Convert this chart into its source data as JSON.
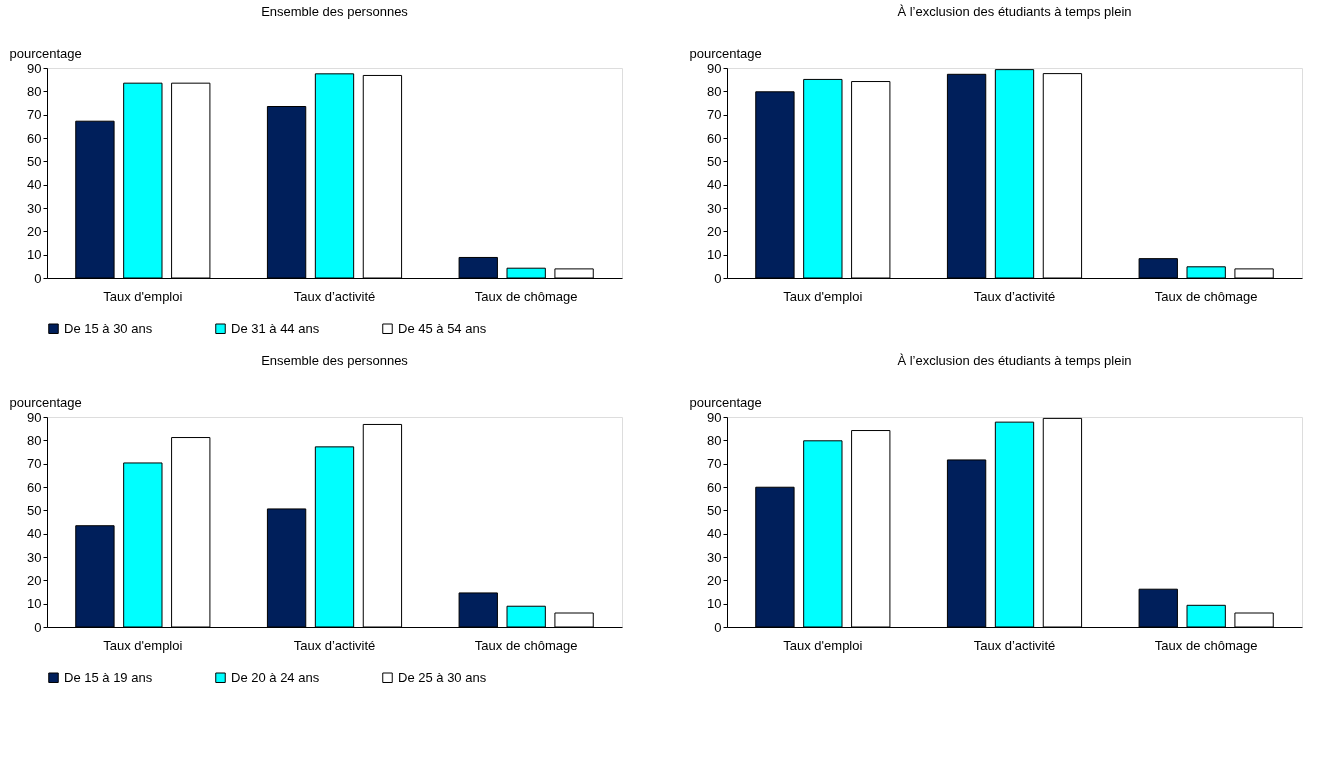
{
  "chart_data": [
    {
      "type": "bar",
      "title": "Ensemble des personnes",
      "ylabel": "pourcentage",
      "categories": [
        "Taux d'emploi",
        "Taux d’activité",
        "Taux de chômage"
      ],
      "ylim": [
        0,
        90
      ],
      "yticks": [
        0,
        10,
        20,
        30,
        40,
        50,
        60,
        70,
        80,
        90
      ],
      "legend": "bottom",
      "grid": false,
      "series": [
        {
          "name": "De 15 à 30 ans",
          "color": "#001f5b",
          "values": [
            67.2,
            73.5,
            8.8
          ]
        },
        {
          "name": "De 31 à 44 ans",
          "color": "#00ffff",
          "values": [
            83.5,
            87.5,
            4.2
          ]
        },
        {
          "name": "De 45 à 54 ans",
          "color": "#ffffff",
          "values": [
            83.5,
            86.8,
            3.9
          ]
        }
      ]
    },
    {
      "type": "bar",
      "title": "À l’exclusion des étudiants à temps plein",
      "ylabel": "pourcentage",
      "categories": [
        "Taux d'emploi",
        "Taux d’activité",
        "Taux de chômage"
      ],
      "ylim": [
        0,
        90
      ],
      "yticks": [
        0,
        10,
        20,
        30,
        40,
        50,
        60,
        70,
        80,
        90
      ],
      "legend": "bottom",
      "grid": false,
      "series": [
        {
          "name": "De 15 à 30 ans",
          "color": "#001f5b",
          "values": [
            79.8,
            87.3,
            8.3
          ]
        },
        {
          "name": "De 31 à 44 ans",
          "color": "#00ffff",
          "values": [
            85.1,
            89.3,
            4.8
          ]
        },
        {
          "name": "De 45 à 54 ans",
          "color": "#ffffff",
          "values": [
            84.2,
            87.6,
            3.9
          ]
        }
      ]
    },
    {
      "type": "bar",
      "title": "Ensemble des personnes",
      "ylabel": "pourcentage",
      "categories": [
        "Taux d'emploi",
        "Taux d’activité",
        "Taux de chômage"
      ],
      "ylim": [
        0,
        90
      ],
      "yticks": [
        0,
        10,
        20,
        30,
        40,
        50,
        60,
        70,
        80,
        90
      ],
      "legend": "bottom",
      "grid": false,
      "series": [
        {
          "name": "De 15 à 19 ans",
          "color": "#001f5b",
          "values": [
            43.4,
            50.6,
            14.6
          ]
        },
        {
          "name": "De 20 à 24 ans",
          "color": "#00ffff",
          "values": [
            70.3,
            77.2,
            8.9
          ]
        },
        {
          "name": "De 25 à 30 ans",
          "color": "#ffffff",
          "values": [
            81.2,
            86.8,
            6.0
          ]
        }
      ]
    },
    {
      "type": "bar",
      "title": "À l’exclusion des étudiants à temps plein",
      "ylabel": "pourcentage",
      "categories": [
        "Taux d'emploi",
        "Taux d’activité",
        "Taux de chômage"
      ],
      "ylim": [
        0,
        90
      ],
      "yticks": [
        0,
        10,
        20,
        30,
        40,
        50,
        60,
        70,
        80,
        90
      ],
      "legend": "bottom",
      "grid": false,
      "series": [
        {
          "name": "De 15 à 19 ans",
          "color": "#001f5b",
          "values": [
            59.9,
            71.6,
            16.2
          ]
        },
        {
          "name": "De 20 à 24 ans",
          "color": "#00ffff",
          "values": [
            79.8,
            87.8,
            9.3
          ]
        },
        {
          "name": "De 25 à 30 ans",
          "color": "#ffffff",
          "values": [
            84.2,
            89.4,
            6.0
          ]
        }
      ]
    }
  ]
}
